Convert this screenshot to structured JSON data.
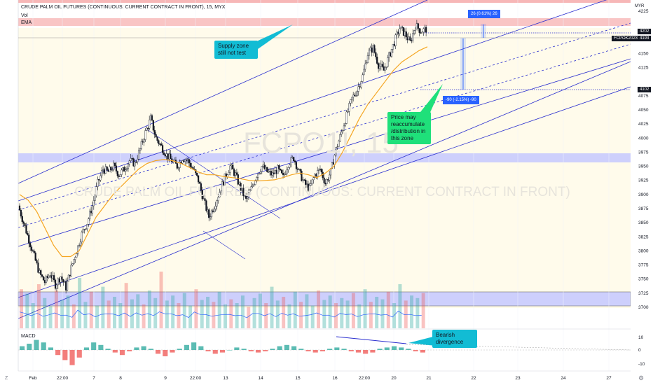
{
  "header": {
    "title": "CRUDE PALM OIL FUTURES (CONTINUOUS: CURRENT CONTRACT IN FRONT), 15, MYX",
    "vol_label": "Vol",
    "ema_label": "EMA",
    "macd_label": "MACD",
    "currency": "MYR",
    "watermark_symbol": "FCPO1!, 15",
    "watermark_name": "CRUDE PALM OIL FUTURES (CONTINUOUS: CURRENT CONTRACT IN FRONT)"
  },
  "annotations": {
    "supply": "Supply zone still not test",
    "reaccumulate": "Price may reaccumulate /distribution in this zone",
    "divergence": "Bearish divergence",
    "measure_up": "26 (0.61%) 26",
    "measure_down": "-90 (-2.15%) -90"
  },
  "price_tags": {
    "top": "4202",
    "current_symbol": "FCPOK2023",
    "current": "4193",
    "bottom": "4102"
  },
  "toolbar": {
    "z_label": "Z",
    "gear_icon": "gear-icon"
  },
  "colors": {
    "up": "#26a69a",
    "down": "#ef5350",
    "ema": "#f5a623",
    "channel": "#2a2ecf",
    "zone_blue": "#c5c8ff",
    "zone_red": "#f7b7b7",
    "note_cyan": "#12bcd4",
    "note_green": "#1fe07a",
    "measure_blue": "#2962ff"
  },
  "chart_data": {
    "type": "candlestick",
    "y_ticks": [
      "4225",
      "4202",
      "4175",
      "4150",
      "4125",
      "4102",
      "4075",
      "4050",
      "4025",
      "4000",
      "3975",
      "3950",
      "3925",
      "3900",
      "3875",
      "3850",
      "3825",
      "3800",
      "3775",
      "3750",
      "3725",
      "3700"
    ],
    "macd_ticks": [
      "10",
      "0",
      "-10"
    ],
    "x_ticks": [
      "Feb",
      "22:00",
      "7",
      "8",
      "9",
      "22:00",
      "13",
      "14",
      "15",
      "16",
      "22:00",
      "20",
      "21",
      "22",
      "23",
      "24",
      "27"
    ],
    "ylim": [
      3690,
      4240
    ],
    "price_path": [
      3880,
      3850,
      3820,
      3790,
      3760,
      3745,
      3760,
      3740,
      3755,
      3735,
      3770,
      3800,
      3830,
      3850,
      3880,
      3920,
      3945,
      3940,
      3950,
      3935,
      3945,
      3960,
      3955,
      3980,
      4010,
      4035,
      4000,
      3985,
      3970,
      3960,
      3950,
      3965,
      3960,
      3945,
      3925,
      3890,
      3860,
      3880,
      3905,
      3930,
      3950,
      3935,
      3910,
      3890,
      3910,
      3935,
      3950,
      3940,
      3935,
      3945,
      3930,
      3955,
      3965,
      3940,
      3920,
      3910,
      3935,
      3945,
      3920,
      3940,
      3980,
      4010,
      4040,
      4070,
      4085,
      4110,
      4150,
      4160,
      4130,
      4120,
      4145,
      4170,
      4195,
      4185,
      4170,
      4200,
      4190,
      4193
    ],
    "ema_path": [
      3900,
      3890,
      3870,
      3840,
      3810,
      3790,
      3790,
      3800,
      3830,
      3860,
      3880,
      3900,
      3915,
      3930,
      3945,
      3955,
      3960,
      3962,
      3960,
      3955,
      3948,
      3940,
      3935,
      3935,
      3932,
      3930,
      3928,
      3925,
      3924,
      3925,
      3926,
      3930,
      3935,
      3938,
      3935,
      3930,
      3938,
      3950,
      3975,
      4005,
      4035,
      4060,
      4080,
      4100,
      4120,
      4135,
      4145,
      4155,
      4162
    ],
    "volume_series": [
      62,
      55,
      40,
      70,
      48,
      35,
      60,
      45,
      52,
      38,
      80,
      42,
      58,
      36,
      66,
      44,
      50,
      40,
      72,
      46,
      54,
      38,
      60,
      48,
      90,
      44,
      52,
      40,
      56,
      36,
      62,
      45,
      50,
      42,
      58,
      38,
      46,
      40,
      52,
      34,
      48,
      55,
      40,
      66,
      44,
      50,
      38,
      58,
      42,
      54,
      36,
      60,
      45,
      52,
      40,
      48,
      44,
      56,
      38,
      62,
      42,
      50,
      46,
      58,
      40,
      70,
      44,
      52,
      48,
      56
    ],
    "macd_series": [
      3,
      5,
      8,
      6,
      2,
      -4,
      -8,
      -12,
      -6,
      2,
      6,
      4,
      1,
      -2,
      -4,
      -1,
      2,
      3,
      1,
      -3,
      -5,
      -2,
      1,
      4,
      6,
      3,
      -1,
      -3,
      -2,
      0,
      2,
      1,
      -1,
      -2,
      -1,
      1,
      3,
      4,
      3,
      1,
      -1,
      -2,
      -1,
      1,
      2,
      1,
      -1,
      -2,
      -3,
      -2,
      1,
      2,
      3,
      2,
      1,
      -1,
      -2
    ]
  }
}
